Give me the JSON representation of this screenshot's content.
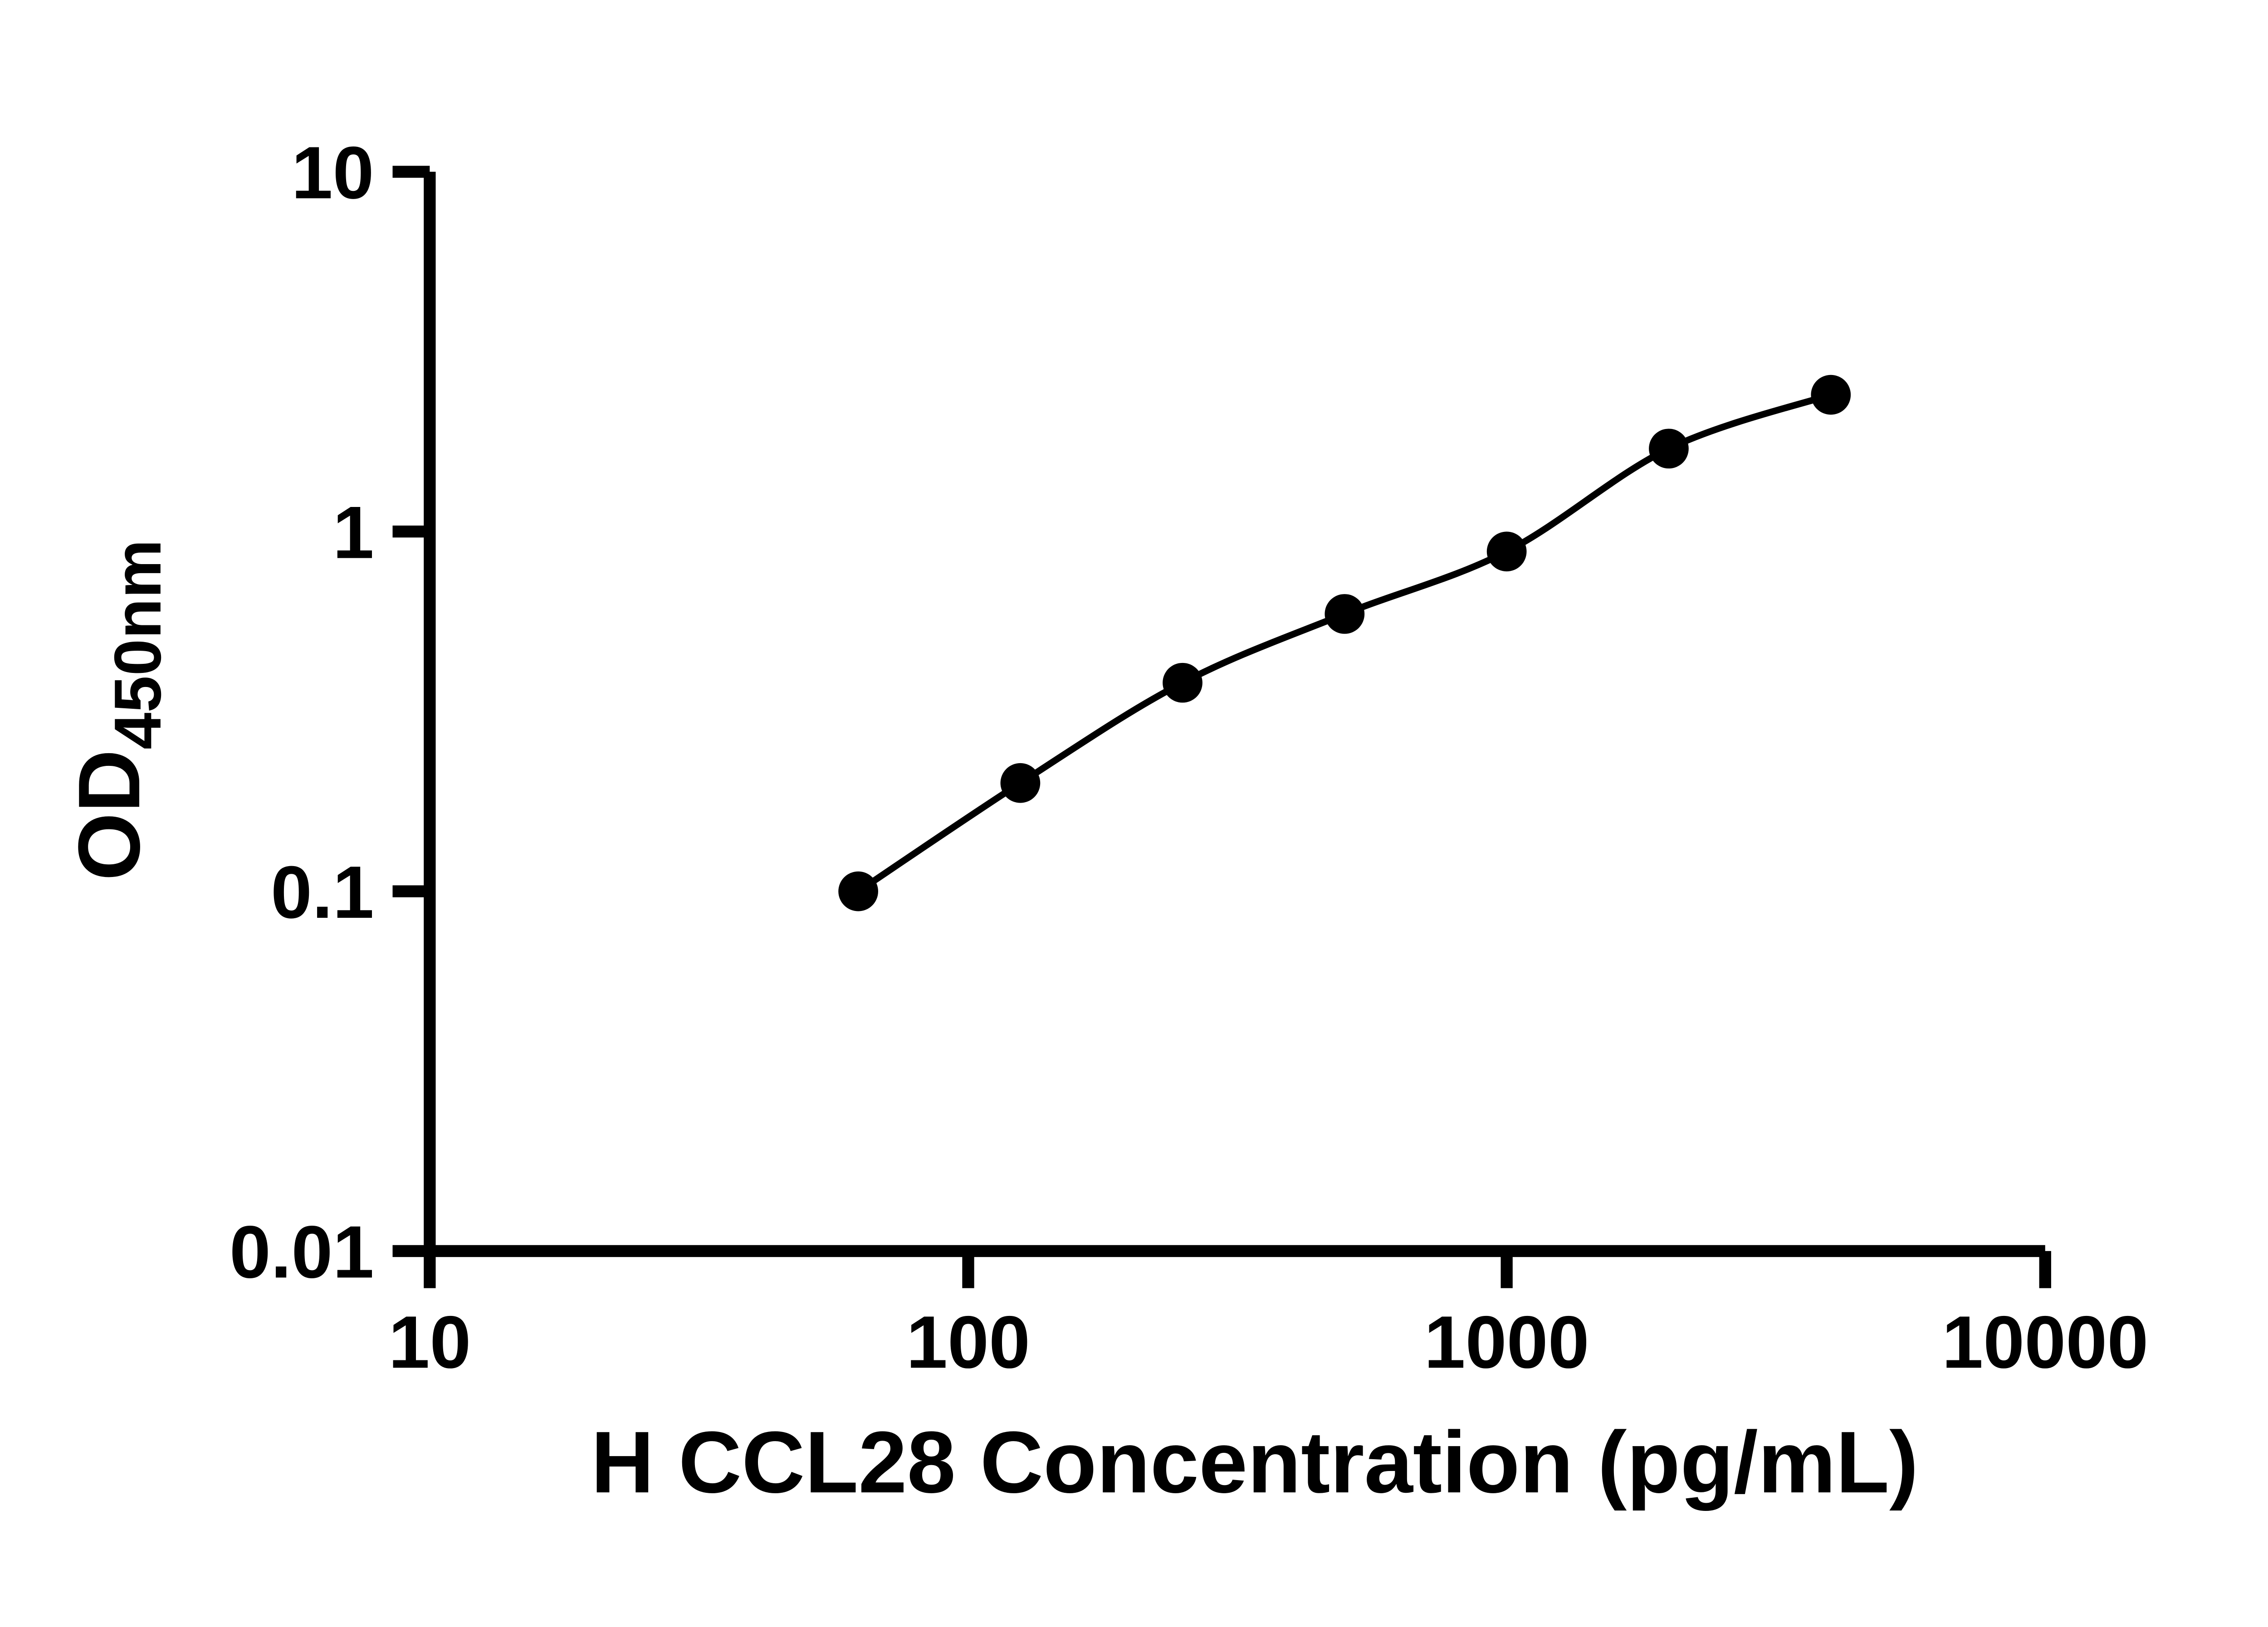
{
  "chart_data": {
    "type": "scatter",
    "title": "",
    "xlabel": "H CCL28 Concentration (pg/mL)",
    "ylabel": {
      "main": "OD",
      "sub": "450nm"
    },
    "xscale": "log",
    "yscale": "log",
    "xlim": [
      10,
      10000
    ],
    "ylim": [
      0.01,
      10
    ],
    "x_tick_values": [
      10,
      100,
      1000,
      10000
    ],
    "x_tick_labels": [
      "10",
      "100",
      "1000",
      "10000"
    ],
    "y_tick_values": [
      10,
      1,
      0.1,
      0.01
    ],
    "y_tick_labels": [
      "10",
      "1",
      "0.1",
      "0.01"
    ],
    "grid": false,
    "legend": "none",
    "curve": "smooth",
    "marker": "circle",
    "marker_color": "#000000",
    "line_color": "#000000",
    "background_color": "#ffffff",
    "series": [
      {
        "x": [
          62.5,
          125,
          250,
          500,
          1000,
          2000,
          4000
        ],
        "y": [
          0.1,
          0.2,
          0.38,
          0.59,
          0.88,
          1.7,
          2.4
        ]
      }
    ]
  }
}
